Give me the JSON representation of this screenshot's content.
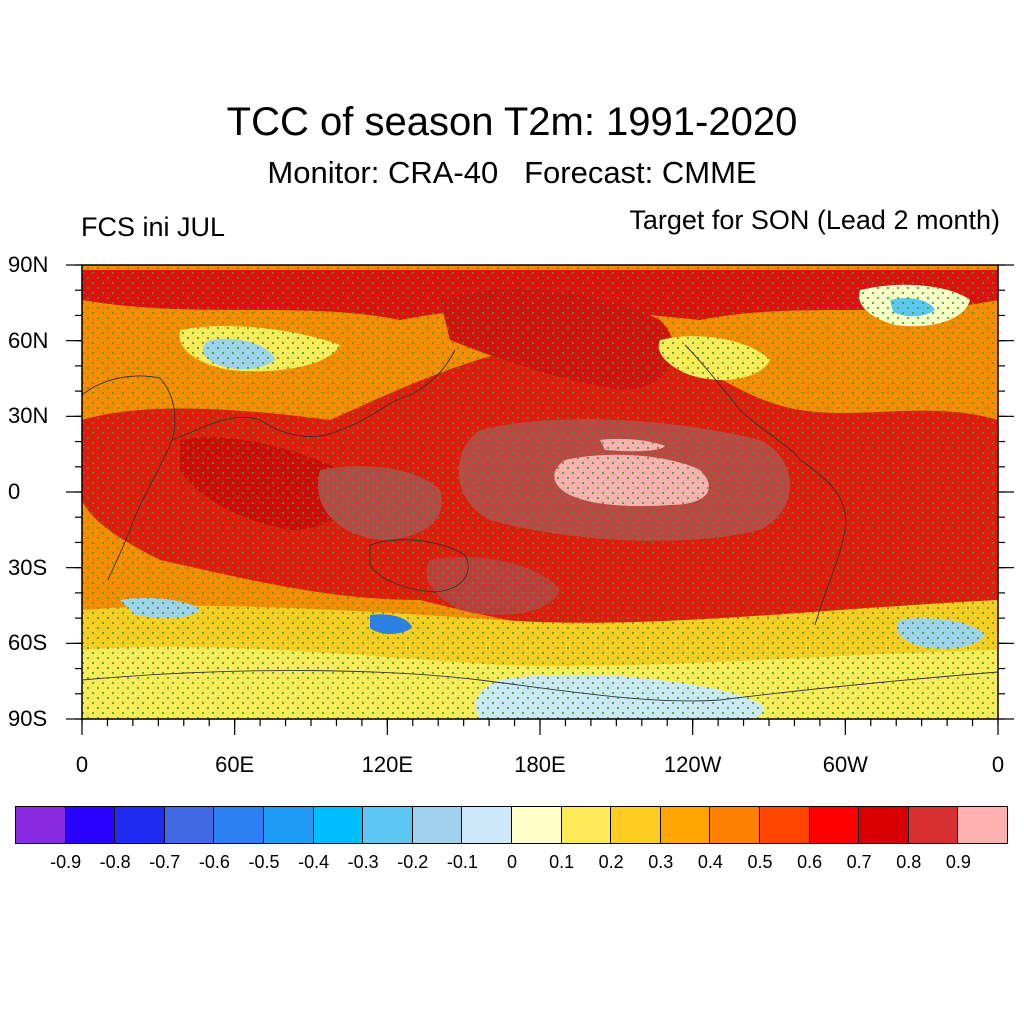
{
  "title": "TCC of season T2m: 1991-2020",
  "subtitle": "Monitor: CRA-40   Forecast: CMME",
  "left_label": "FCS ini JUL",
  "right_label": "Target for SON (Lead 2 month)",
  "lat_labels": [
    "90N",
    "60N",
    "30N",
    "0",
    "30S",
    "60S",
    "90S"
  ],
  "lon_labels": [
    "0",
    "60E",
    "120E",
    "180E",
    "120W",
    "60W",
    "0"
  ],
  "colorbar": {
    "colors": [
      "#8a2be2",
      "#2a00ff",
      "#1e2cf0",
      "#4169e1",
      "#2b7ff0",
      "#1e9cf5",
      "#00bfff",
      "#5cc6f5",
      "#a0d2f0",
      "#cde8f8",
      "#ffffc8",
      "#ffeb5a",
      "#ffcc22",
      "#ffa500",
      "#ff7f00",
      "#ff4500",
      "#ff0000",
      "#d80000",
      "#d83030",
      "#ffb0b0"
    ],
    "labels": [
      "-0.9",
      "-0.8",
      "-0.7",
      "-0.6",
      "-0.5",
      "-0.4",
      "-0.3",
      "-0.2",
      "-0.1",
      "0",
      "0.1",
      "0.2",
      "0.3",
      "0.4",
      "0.5",
      "0.6",
      "0.7",
      "0.8",
      "0.9"
    ]
  },
  "colors": {
    "stipple": "#22aa22",
    "coast": "#333333"
  }
}
